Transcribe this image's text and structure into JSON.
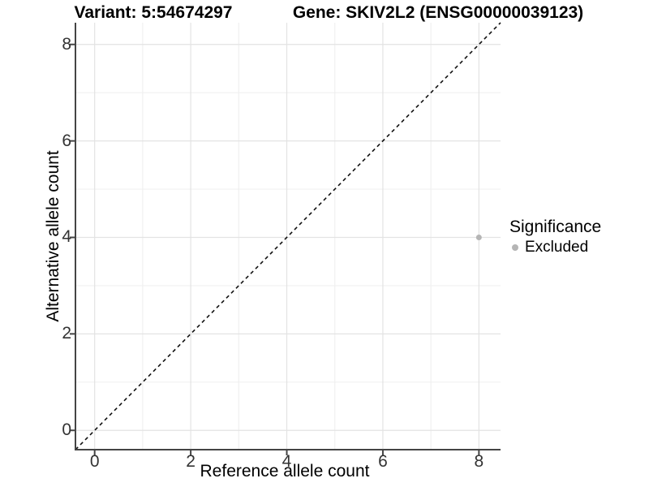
{
  "titles": {
    "variant": "Variant: 5:54674297",
    "gene": "Gene: SKIV2L2 (ENSG00000039123)"
  },
  "chart_data": {
    "type": "scatter",
    "title_left": "Variant: 5:54674297",
    "title_right": "Gene: SKIV2L2 (ENSG00000039123)",
    "xlabel": "Reference allele count",
    "ylabel": "Alternative allele count",
    "xlim": [
      -0.4,
      8.45
    ],
    "ylim": [
      -0.4,
      8.45
    ],
    "x_ticks": [
      0,
      2,
      4,
      6,
      8
    ],
    "y_ticks": [
      0,
      2,
      4,
      6,
      8
    ],
    "x_minor_ticks": [
      1,
      3,
      5,
      7
    ],
    "y_minor_ticks": [
      1,
      3,
      5,
      7
    ],
    "grid": true,
    "reference_line": {
      "type": "identity",
      "style": "dashed",
      "color": "#111111"
    },
    "series": [
      {
        "name": "Excluded",
        "color": "#b5b5b5",
        "points": [
          {
            "x": 8,
            "y": 4
          }
        ]
      }
    ],
    "legend": {
      "title": "Significance",
      "position": "right",
      "items": [
        {
          "label": "Excluded",
          "color": "#b5b5b5"
        }
      ]
    },
    "style": {
      "grid_major": "#e3e3e3",
      "grid_minor": "#f0f0f0",
      "axis_color": "#444444",
      "point_radius": 3.5
    }
  }
}
